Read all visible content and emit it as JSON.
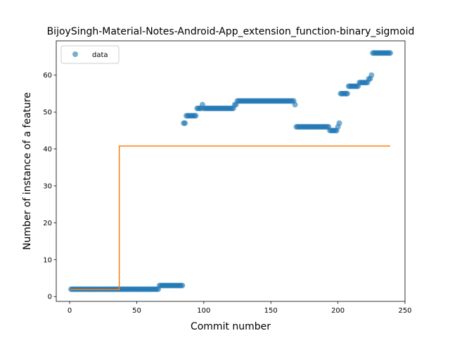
{
  "chart_data": {
    "type": "scatter",
    "title": "BijoySingh-Material-Notes-Android-App_extension_function-binary_sigmoid",
    "xlabel": "Commit number",
    "ylabel": "Number of instance of a feature",
    "xlim": [
      -10,
      250
    ],
    "ylim": [
      -1.3,
      69.3
    ],
    "xticks": [
      0,
      50,
      100,
      150,
      200,
      250
    ],
    "yticks": [
      0,
      10,
      20,
      30,
      40,
      50,
      60
    ],
    "legend": {
      "placement": "top-left",
      "entries": [
        "data"
      ]
    },
    "grid": false,
    "colors": {
      "data": "#1f77b4",
      "fit": "#ff7f0e"
    },
    "series": [
      {
        "name": "data",
        "kind": "scatter",
        "segments": [
          {
            "x_from": 1,
            "x_to": 66,
            "y": 2
          },
          {
            "x_from": 67,
            "x_to": 84,
            "y": 3
          },
          {
            "x_from": 85,
            "x_to": 86,
            "y": 47
          },
          {
            "x_from": 87,
            "x_to": 94,
            "y": 49
          },
          {
            "x_from": 95,
            "x_to": 98,
            "y": 51
          },
          {
            "x_from": 99,
            "x_to": 99,
            "y": 52
          },
          {
            "x_from": 100,
            "x_to": 122,
            "y": 51
          },
          {
            "x_from": 123,
            "x_to": 124,
            "y": 52
          },
          {
            "x_from": 125,
            "x_to": 167,
            "y": 53
          },
          {
            "x_from": 168,
            "x_to": 168,
            "y": 52
          },
          {
            "x_from": 169,
            "x_to": 193,
            "y": 46
          },
          {
            "x_from": 194,
            "x_to": 199,
            "y": 45
          },
          {
            "x_from": 200,
            "x_to": 200,
            "y": 46
          },
          {
            "x_from": 201,
            "x_to": 201,
            "y": 47
          },
          {
            "x_from": 202,
            "x_to": 207,
            "y": 55
          },
          {
            "x_from": 208,
            "x_to": 215,
            "y": 57
          },
          {
            "x_from": 216,
            "x_to": 222,
            "y": 58
          },
          {
            "x_from": 223,
            "x_to": 224,
            "y": 59
          },
          {
            "x_from": 225,
            "x_to": 225,
            "y": 60
          },
          {
            "x_from": 226,
            "x_to": 239,
            "y": 66
          }
        ]
      },
      {
        "name": "",
        "kind": "step-line",
        "x": [
          1,
          37,
          37,
          239
        ],
        "y": [
          1.9,
          1.9,
          40.8,
          40.8
        ]
      }
    ]
  }
}
